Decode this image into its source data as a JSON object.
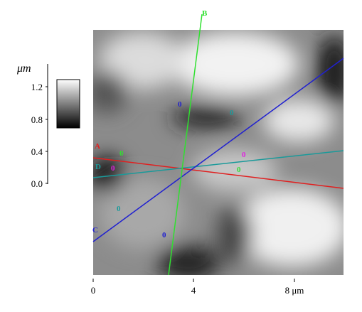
{
  "scale_bar": {
    "unit": "μm",
    "ticks": [
      "1.2",
      "0.8",
      "0.4",
      "0.0"
    ]
  },
  "x_axis": {
    "ticks": [
      "0",
      "4",
      "8 μm"
    ]
  },
  "profile_lines": [
    "A",
    "B",
    "C",
    "D"
  ],
  "markers": [
    "0",
    "0",
    "0",
    "0",
    "0",
    "0",
    "0",
    "0"
  ]
}
